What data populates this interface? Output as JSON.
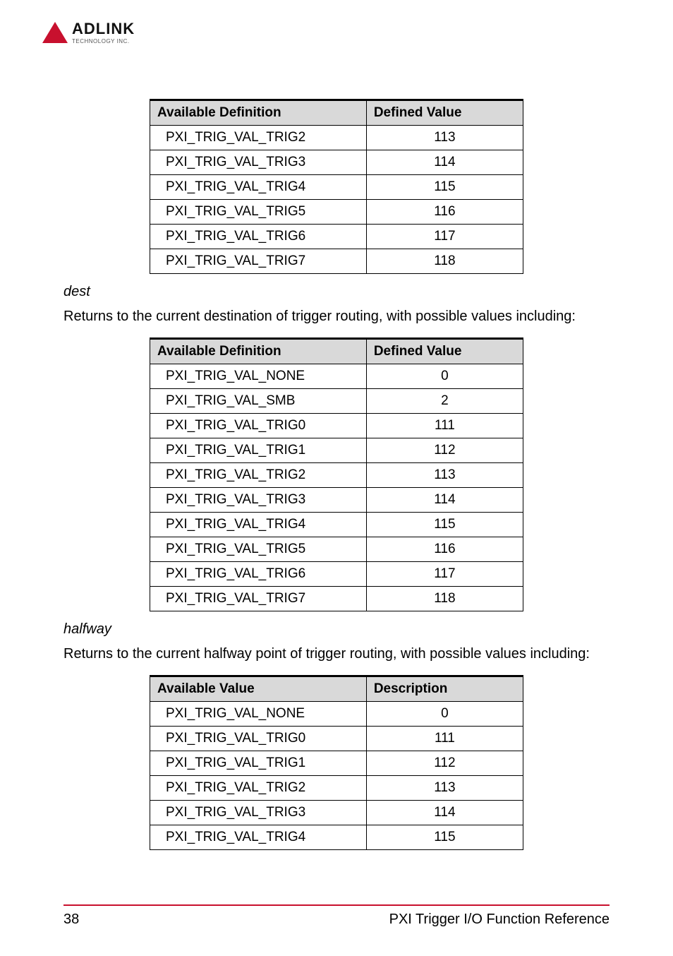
{
  "logo": {
    "main": "ADLINK",
    "sub": "TECHNOLOGY INC."
  },
  "table1": {
    "header": {
      "c1": "Available Definition",
      "c2": "Defined Value"
    },
    "rows": [
      {
        "c1": "PXI_TRIG_VAL_TRIG2",
        "c2": "113"
      },
      {
        "c1": "PXI_TRIG_VAL_TRIG3",
        "c2": "114"
      },
      {
        "c1": "PXI_TRIG_VAL_TRIG4",
        "c2": "115"
      },
      {
        "c1": "PXI_TRIG_VAL_TRIG5",
        "c2": "116"
      },
      {
        "c1": "PXI_TRIG_VAL_TRIG6",
        "c2": "117"
      },
      {
        "c1": "PXI_TRIG_VAL_TRIG7",
        "c2": "118"
      }
    ]
  },
  "section_dest": {
    "heading": "dest",
    "para": "Returns to the current destination of trigger routing, with possible values including:"
  },
  "table2": {
    "header": {
      "c1": "Available Definition",
      "c2": "Defined Value"
    },
    "rows": [
      {
        "c1": "PXI_TRIG_VAL_NONE",
        "c2": "0"
      },
      {
        "c1": "PXI_TRIG_VAL_SMB",
        "c2": "2"
      },
      {
        "c1": "PXI_TRIG_VAL_TRIG0",
        "c2": "111"
      },
      {
        "c1": "PXI_TRIG_VAL_TRIG1",
        "c2": "112"
      },
      {
        "c1": "PXI_TRIG_VAL_TRIG2",
        "c2": "113"
      },
      {
        "c1": "PXI_TRIG_VAL_TRIG3",
        "c2": "114"
      },
      {
        "c1": "PXI_TRIG_VAL_TRIG4",
        "c2": "115"
      },
      {
        "c1": "PXI_TRIG_VAL_TRIG5",
        "c2": "116"
      },
      {
        "c1": "PXI_TRIG_VAL_TRIG6",
        "c2": "117"
      },
      {
        "c1": "PXI_TRIG_VAL_TRIG7",
        "c2": "118"
      }
    ]
  },
  "section_halfway": {
    "heading": "halfway",
    "para": "Returns to the current halfway point of trigger routing, with possible values including:"
  },
  "table3": {
    "header": {
      "c1": "Available Value",
      "c2": "Description"
    },
    "rows": [
      {
        "c1": "PXI_TRIG_VAL_NONE",
        "c2": "0"
      },
      {
        "c1": "PXI_TRIG_VAL_TRIG0",
        "c2": "111"
      },
      {
        "c1": "PXI_TRIG_VAL_TRIG1",
        "c2": "112"
      },
      {
        "c1": "PXI_TRIG_VAL_TRIG2",
        "c2": "113"
      },
      {
        "c1": "PXI_TRIG_VAL_TRIG3",
        "c2": "114"
      },
      {
        "c1": "PXI_TRIG_VAL_TRIG4",
        "c2": "115"
      }
    ]
  },
  "footer": {
    "page_number": "38",
    "title": "PXI Trigger I/O Function Reference"
  }
}
